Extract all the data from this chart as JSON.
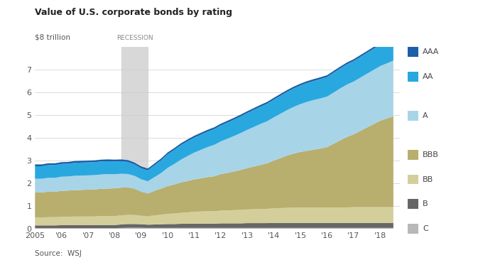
{
  "title": "Value of U.S. corporate bonds by rating",
  "ylabel": "$8 trillion",
  "source": "Source:  WSJ",
  "recession_start": 2008.25,
  "recession_end": 2009.25,
  "recession_label": "RECESSION",
  "years": [
    2005,
    2005.25,
    2005.5,
    2005.75,
    2006,
    2006.25,
    2006.5,
    2006.75,
    2007,
    2007.25,
    2007.5,
    2007.75,
    2008,
    2008.25,
    2008.5,
    2008.75,
    2009,
    2009.25,
    2009.5,
    2009.75,
    2010,
    2010.25,
    2010.5,
    2010.75,
    2011,
    2011.25,
    2011.5,
    2011.75,
    2012,
    2012.25,
    2012.5,
    2012.75,
    2013,
    2013.25,
    2013.5,
    2013.75,
    2014,
    2014.25,
    2014.5,
    2014.75,
    2015,
    2015.25,
    2015.5,
    2015.75,
    2016,
    2016.25,
    2016.5,
    2016.75,
    2017,
    2017.25,
    2017.5,
    2017.75,
    2018,
    2018.25,
    2018.5
  ],
  "C": [
    0.03,
    0.03,
    0.03,
    0.03,
    0.03,
    0.03,
    0.03,
    0.03,
    0.03,
    0.03,
    0.03,
    0.03,
    0.03,
    0.04,
    0.05,
    0.05,
    0.05,
    0.04,
    0.04,
    0.04,
    0.04,
    0.04,
    0.04,
    0.04,
    0.04,
    0.04,
    0.04,
    0.04,
    0.04,
    0.04,
    0.04,
    0.04,
    0.04,
    0.04,
    0.04,
    0.04,
    0.04,
    0.04,
    0.04,
    0.04,
    0.04,
    0.04,
    0.04,
    0.04,
    0.04,
    0.04,
    0.04,
    0.04,
    0.04,
    0.04,
    0.04,
    0.04,
    0.04,
    0.04,
    0.04
  ],
  "B": [
    0.12,
    0.12,
    0.12,
    0.12,
    0.13,
    0.13,
    0.13,
    0.13,
    0.13,
    0.13,
    0.14,
    0.14,
    0.14,
    0.15,
    0.16,
    0.16,
    0.15,
    0.14,
    0.15,
    0.16,
    0.17,
    0.17,
    0.18,
    0.18,
    0.19,
    0.19,
    0.19,
    0.19,
    0.2,
    0.2,
    0.2,
    0.2,
    0.21,
    0.21,
    0.21,
    0.21,
    0.22,
    0.22,
    0.22,
    0.22,
    0.22,
    0.22,
    0.22,
    0.22,
    0.22,
    0.22,
    0.22,
    0.22,
    0.22,
    0.22,
    0.22,
    0.22,
    0.22,
    0.22,
    0.22
  ],
  "BB": [
    0.35,
    0.35,
    0.36,
    0.36,
    0.37,
    0.37,
    0.38,
    0.38,
    0.38,
    0.38,
    0.39,
    0.39,
    0.39,
    0.4,
    0.41,
    0.4,
    0.38,
    0.37,
    0.4,
    0.42,
    0.45,
    0.46,
    0.48,
    0.5,
    0.52,
    0.53,
    0.54,
    0.54,
    0.56,
    0.57,
    0.58,
    0.59,
    0.6,
    0.61,
    0.62,
    0.63,
    0.64,
    0.65,
    0.66,
    0.67,
    0.67,
    0.67,
    0.67,
    0.67,
    0.68,
    0.68,
    0.68,
    0.68,
    0.69,
    0.69,
    0.69,
    0.69,
    0.69,
    0.69,
    0.69
  ],
  "BBB": [
    1.1,
    1.1,
    1.12,
    1.12,
    1.14,
    1.15,
    1.16,
    1.17,
    1.18,
    1.19,
    1.2,
    1.21,
    1.22,
    1.22,
    1.2,
    1.15,
    1.05,
    1.0,
    1.08,
    1.15,
    1.22,
    1.28,
    1.34,
    1.38,
    1.42,
    1.46,
    1.5,
    1.54,
    1.6,
    1.65,
    1.7,
    1.76,
    1.82,
    1.88,
    1.94,
    2.0,
    2.1,
    2.2,
    2.3,
    2.38,
    2.45,
    2.5,
    2.55,
    2.6,
    2.65,
    2.8,
    2.95,
    3.1,
    3.2,
    3.35,
    3.5,
    3.65,
    3.8,
    3.9,
    4.0
  ],
  "A": [
    0.6,
    0.6,
    0.61,
    0.61,
    0.62,
    0.62,
    0.63,
    0.63,
    0.63,
    0.63,
    0.63,
    0.63,
    0.62,
    0.61,
    0.59,
    0.57,
    0.55,
    0.54,
    0.6,
    0.68,
    0.8,
    0.9,
    1.0,
    1.1,
    1.18,
    1.25,
    1.32,
    1.38,
    1.44,
    1.5,
    1.56,
    1.62,
    1.68,
    1.74,
    1.8,
    1.85,
    1.9,
    1.95,
    2.0,
    2.05,
    2.1,
    2.15,
    2.18,
    2.2,
    2.22,
    2.25,
    2.28,
    2.3,
    2.32,
    2.34,
    2.36,
    2.38,
    2.4,
    2.42,
    2.44
  ],
  "AA": [
    0.55,
    0.55,
    0.56,
    0.56,
    0.56,
    0.56,
    0.57,
    0.57,
    0.57,
    0.57,
    0.57,
    0.57,
    0.56,
    0.55,
    0.53,
    0.5,
    0.48,
    0.48,
    0.52,
    0.56,
    0.6,
    0.62,
    0.64,
    0.65,
    0.66,
    0.67,
    0.68,
    0.69,
    0.7,
    0.71,
    0.72,
    0.73,
    0.74,
    0.75,
    0.76,
    0.77,
    0.78,
    0.79,
    0.8,
    0.81,
    0.82,
    0.83,
    0.84,
    0.85,
    0.86,
    0.87,
    0.88,
    0.89,
    0.9,
    0.91,
    0.92,
    0.93,
    0.94,
    0.95,
    0.96
  ],
  "AAA": [
    0.08,
    0.08,
    0.08,
    0.08,
    0.08,
    0.08,
    0.08,
    0.08,
    0.08,
    0.08,
    0.08,
    0.08,
    0.08,
    0.08,
    0.08,
    0.08,
    0.08,
    0.08,
    0.08,
    0.08,
    0.08,
    0.08,
    0.08,
    0.08,
    0.08,
    0.08,
    0.08,
    0.08,
    0.08,
    0.08,
    0.08,
    0.08,
    0.08,
    0.08,
    0.08,
    0.08,
    0.08,
    0.08,
    0.08,
    0.08,
    0.08,
    0.08,
    0.08,
    0.08,
    0.08,
    0.08,
    0.08,
    0.08,
    0.08,
    0.08,
    0.08,
    0.08,
    0.08,
    0.08,
    0.08
  ],
  "colors": {
    "C": "#b8b8b8",
    "B": "#666666",
    "BB": "#d4cf9a",
    "BBB": "#b8ae6e",
    "A": "#a8d4e8",
    "AA": "#29a8e0",
    "AAA": "#1a5fa8"
  },
  "ylim": [
    0,
    8
  ],
  "yticks": [
    0,
    1,
    2,
    3,
    4,
    5,
    6,
    7
  ],
  "xlim_start": 2005,
  "xlim_end": 2018.75,
  "xtick_labels": [
    "2005",
    "'06",
    "'07",
    "'08",
    "'09",
    "'10",
    "'11",
    "'12",
    "'13",
    "'14",
    "'15",
    "'16",
    "'17",
    "'18"
  ],
  "xtick_positions": [
    2005,
    2006,
    2007,
    2008,
    2009,
    2010,
    2011,
    2012,
    2013,
    2014,
    2015,
    2016,
    2017,
    2018
  ],
  "background_color": "#ffffff",
  "recession_color": "#d8d8d8",
  "legend_items": [
    "AAA",
    "AA",
    "A",
    "BBB",
    "BB",
    "B",
    "C"
  ],
  "legend_gaps_after": [
    1,
    2
  ]
}
